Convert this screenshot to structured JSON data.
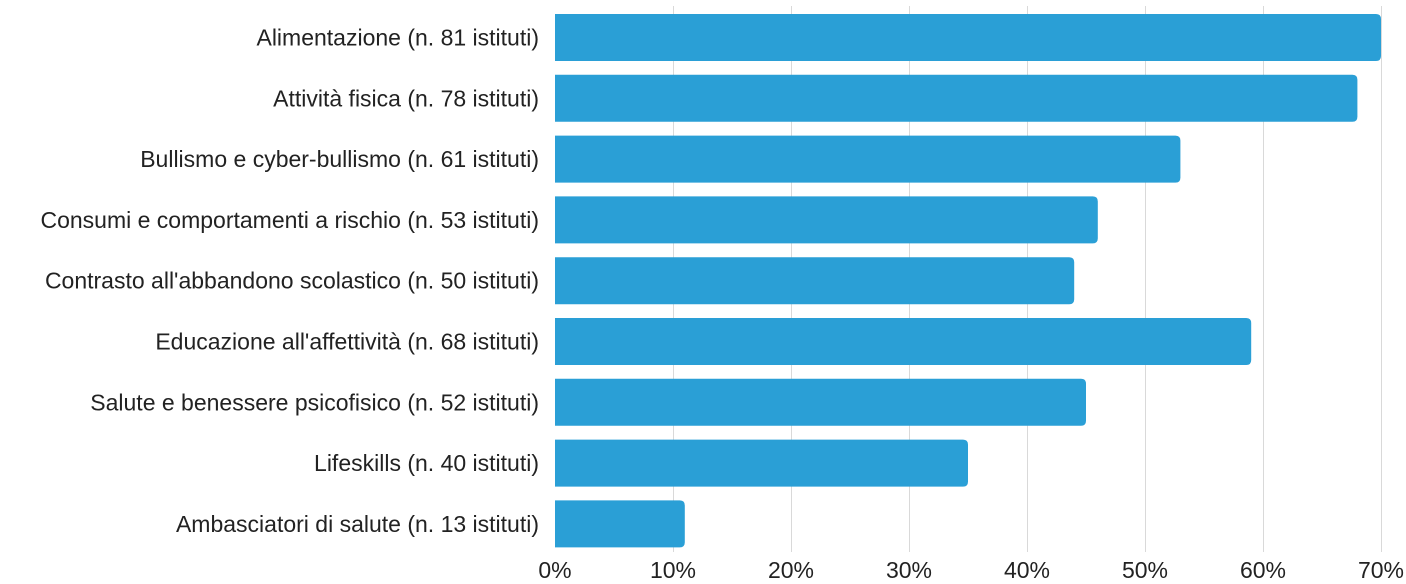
{
  "chart_data": {
    "type": "bar",
    "orientation": "horizontal",
    "title": "",
    "xlabel": "",
    "ylabel": "",
    "categories": [
      "Alimentazione (n. 81 istituti)",
      "Attività fisica (n. 78 istituti)",
      "Bullismo e cyber-bullismo (n. 61 istituti)",
      "Consumi e comportamenti a rischio (n. 53 istituti)",
      "Contrasto all'abbandono scolastico (n. 50 istituti)",
      "Educazione all'affettività (n. 68 istituti)",
      "Salute e benessere psicofisico (n. 52 istituti)",
      "Lifeskills (n. 40 istituti)",
      "Ambasciatori di salute (n. 13 istituti)"
    ],
    "values": [
      70,
      68,
      53,
      46,
      44,
      59,
      45,
      35,
      11
    ],
    "xlim": [
      0,
      70
    ],
    "xticks": [
      0,
      10,
      20,
      30,
      40,
      50,
      60,
      70
    ],
    "xtick_labels": [
      "0%",
      "10%",
      "20%",
      "30%",
      "40%",
      "50%",
      "60%",
      "70%"
    ],
    "grid": "vertical",
    "legend": "none",
    "bar_color": "#2a9fd6"
  }
}
